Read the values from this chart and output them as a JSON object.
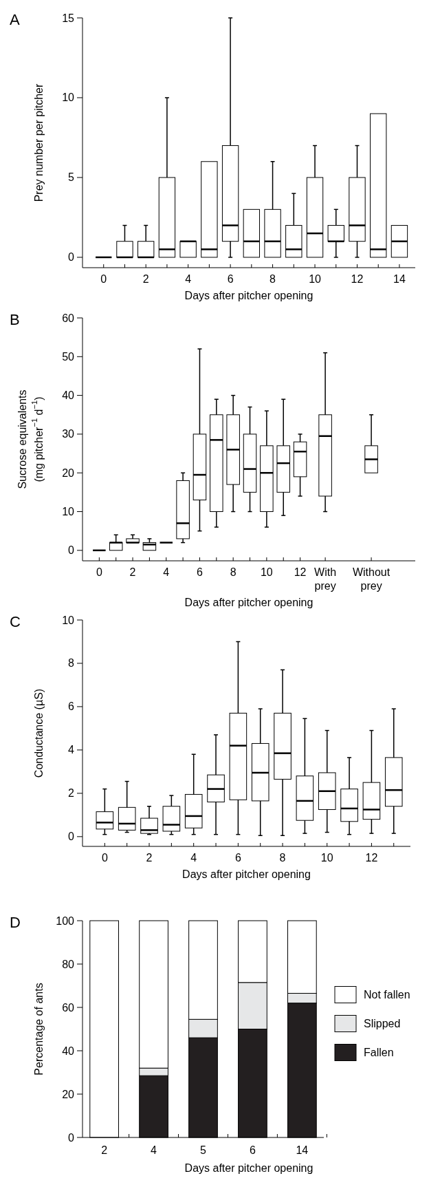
{
  "chart_data": [
    {
      "type": "box",
      "title": "A",
      "xlabel": "Days after pitcher opening",
      "ylabel": "Prey number per pitcher",
      "categories": [
        "0",
        null,
        "2",
        null,
        "4",
        null,
        "6",
        null,
        "8",
        null,
        "10",
        null,
        "12",
        null,
        "14"
      ],
      "ylim": [
        -0.65,
        15
      ],
      "yticks": [
        0,
        5,
        10,
        15
      ],
      "boxes": [
        {
          "low": 0,
          "q1": 0,
          "median": 0,
          "q3": 0,
          "high": 0
        },
        {
          "low": 0,
          "q1": 0,
          "median": 0,
          "q3": 1,
          "high": 2
        },
        {
          "low": 0,
          "q1": 0,
          "median": 0,
          "q3": 1,
          "high": 2
        },
        {
          "low": 0,
          "q1": 0,
          "median": 0.5,
          "q3": 5,
          "high": 10
        },
        {
          "low": 0,
          "q1": 0,
          "median": 1,
          "q3": 1,
          "high": 1
        },
        {
          "low": 0,
          "q1": 0,
          "median": 0.5,
          "q3": 6,
          "high": 6
        },
        {
          "low": 0,
          "q1": 1,
          "median": 2,
          "q3": 7,
          "high": 15
        },
        {
          "low": 0,
          "q1": 0,
          "median": 1,
          "q3": 3,
          "high": 3
        },
        {
          "low": 0,
          "q1": 0,
          "median": 1,
          "q3": 3,
          "high": 6
        },
        {
          "low": 0,
          "q1": 0,
          "median": 0.5,
          "q3": 2,
          "high": 4
        },
        {
          "low": 0,
          "q1": 0,
          "median": 1.5,
          "q3": 5,
          "high": 7
        },
        {
          "low": 0,
          "q1": 1,
          "median": 1,
          "q3": 2,
          "high": 3
        },
        {
          "low": 0,
          "q1": 1,
          "median": 2,
          "q3": 5,
          "high": 7
        },
        {
          "low": 0,
          "q1": 0,
          "median": 0.5,
          "q3": 9,
          "high": 9
        },
        {
          "low": 0,
          "q1": 0,
          "median": 1,
          "q3": 2,
          "high": 2
        }
      ]
    },
    {
      "type": "box",
      "title": "B",
      "xlabel": "Days after pitcher opening",
      "ylabel": "Sucrose equivalents\n(mg pitcher$^{−1}$ d$^{−1}$)",
      "categories": [
        "0",
        null,
        "2",
        null,
        "4",
        null,
        "6",
        null,
        "8",
        null,
        "10",
        null,
        "12",
        "With prey",
        "Without prey"
      ],
      "ylim": [
        -2.7,
        60
      ],
      "yticks": [
        0,
        10,
        20,
        30,
        40,
        50,
        60
      ],
      "boxes": [
        {
          "low": 0,
          "q1": 0,
          "median": 0,
          "q3": 0,
          "high": 0
        },
        {
          "low": 0,
          "q1": 0,
          "median": 2,
          "q3": 2,
          "high": 4
        },
        {
          "low": 2,
          "q1": 2,
          "median": 2,
          "q3": 3,
          "high": 4
        },
        {
          "low": 0,
          "q1": 0,
          "median": 1.5,
          "q3": 2,
          "high": 3
        },
        {
          "low": 2,
          "q1": 2,
          "median": 2,
          "q3": 2,
          "high": 2
        },
        {
          "low": 2,
          "q1": 3,
          "median": 7,
          "q3": 18,
          "high": 20
        },
        {
          "low": 5,
          "q1": 13,
          "median": 19.5,
          "q3": 30,
          "high": 52
        },
        {
          "low": 6,
          "q1": 10,
          "median": 28.5,
          "q3": 35,
          "high": 39
        },
        {
          "low": 10,
          "q1": 17,
          "median": 26,
          "q3": 35,
          "high": 40
        },
        {
          "low": 10,
          "q1": 15,
          "median": 21,
          "q3": 30,
          "high": 37
        },
        {
          "low": 6,
          "q1": 10,
          "median": 20,
          "q3": 27,
          "high": 36
        },
        {
          "low": 9,
          "q1": 15,
          "median": 22.5,
          "q3": 27,
          "high": 39
        },
        {
          "low": 14,
          "q1": 19,
          "median": 25.5,
          "q3": 28,
          "high": 30
        },
        {
          "low": 10,
          "q1": 14,
          "median": 29.5,
          "q3": 35,
          "high": 51
        },
        {
          "low": 20,
          "q1": 20,
          "median": 23.5,
          "q3": 27,
          "high": 35
        }
      ]
    },
    {
      "type": "box",
      "title": "C",
      "xlabel": "Days after pitcher opening",
      "ylabel": "Conductance (µS)",
      "categories": [
        "0",
        null,
        "2",
        null,
        "4",
        null,
        "6",
        null,
        "8",
        null,
        "10",
        null,
        "12",
        null
      ],
      "ylim": [
        -0.45,
        10
      ],
      "yticks": [
        0,
        2,
        4,
        6,
        8,
        10
      ],
      "boxes": [
        {
          "low": 0.1,
          "q1": 0.35,
          "median": 0.65,
          "q3": 1.15,
          "high": 2.2
        },
        {
          "low": 0.2,
          "q1": 0.3,
          "median": 0.6,
          "q3": 1.35,
          "high": 2.55
        },
        {
          "low": 0.1,
          "q1": 0.15,
          "median": 0.3,
          "q3": 0.85,
          "high": 1.4
        },
        {
          "low": 0.1,
          "q1": 0.25,
          "median": 0.55,
          "q3": 1.4,
          "high": 1.9
        },
        {
          "low": 0.1,
          "q1": 0.4,
          "median": 0.95,
          "q3": 1.95,
          "high": 3.8
        },
        {
          "low": 0.1,
          "q1": 1.6,
          "median": 2.2,
          "q3": 2.85,
          "high": 4.7
        },
        {
          "low": 0.1,
          "q1": 1.7,
          "median": 4.2,
          "q3": 5.7,
          "high": 9
        },
        {
          "low": 0.05,
          "q1": 1.65,
          "median": 2.95,
          "q3": 4.3,
          "high": 5.9
        },
        {
          "low": 0.05,
          "q1": 2.65,
          "median": 3.85,
          "q3": 5.7,
          "high": 7.7
        },
        {
          "low": 0.15,
          "q1": 0.75,
          "median": 1.65,
          "q3": 2.8,
          "high": 5.45
        },
        {
          "low": 0.2,
          "q1": 1.25,
          "median": 2.1,
          "q3": 2.95,
          "high": 4.9
        },
        {
          "low": 0.1,
          "q1": 0.7,
          "median": 1.3,
          "q3": 2.2,
          "high": 3.65
        },
        {
          "low": 0.15,
          "q1": 0.8,
          "median": 1.25,
          "q3": 2.5,
          "high": 4.9
        },
        {
          "low": 0.15,
          "q1": 1.4,
          "median": 2.15,
          "q3": 3.65,
          "high": 5.9
        }
      ]
    },
    {
      "type": "bar",
      "stacked": true,
      "title": "D",
      "xlabel": "Days after pitcher opening",
      "ylabel": "Percentage of ants",
      "categories": [
        "2",
        "4",
        "5",
        "6",
        "14"
      ],
      "ylim": [
        0,
        100
      ],
      "yticks": [
        0,
        20,
        40,
        60,
        80,
        100
      ],
      "legend": "right",
      "series": [
        {
          "name": "Fallen",
          "color": "#231f20",
          "values": [
            0,
            28.5,
            46,
            50,
            62
          ]
        },
        {
          "name": "Slipped",
          "color": "#e6e7e8",
          "values": [
            0,
            3.5,
            8.5,
            21.5,
            4.5
          ]
        },
        {
          "name": "Not fallen",
          "color": "#ffffff",
          "values": [
            100,
            68,
            45.5,
            28.5,
            33.5
          ]
        }
      ]
    }
  ]
}
